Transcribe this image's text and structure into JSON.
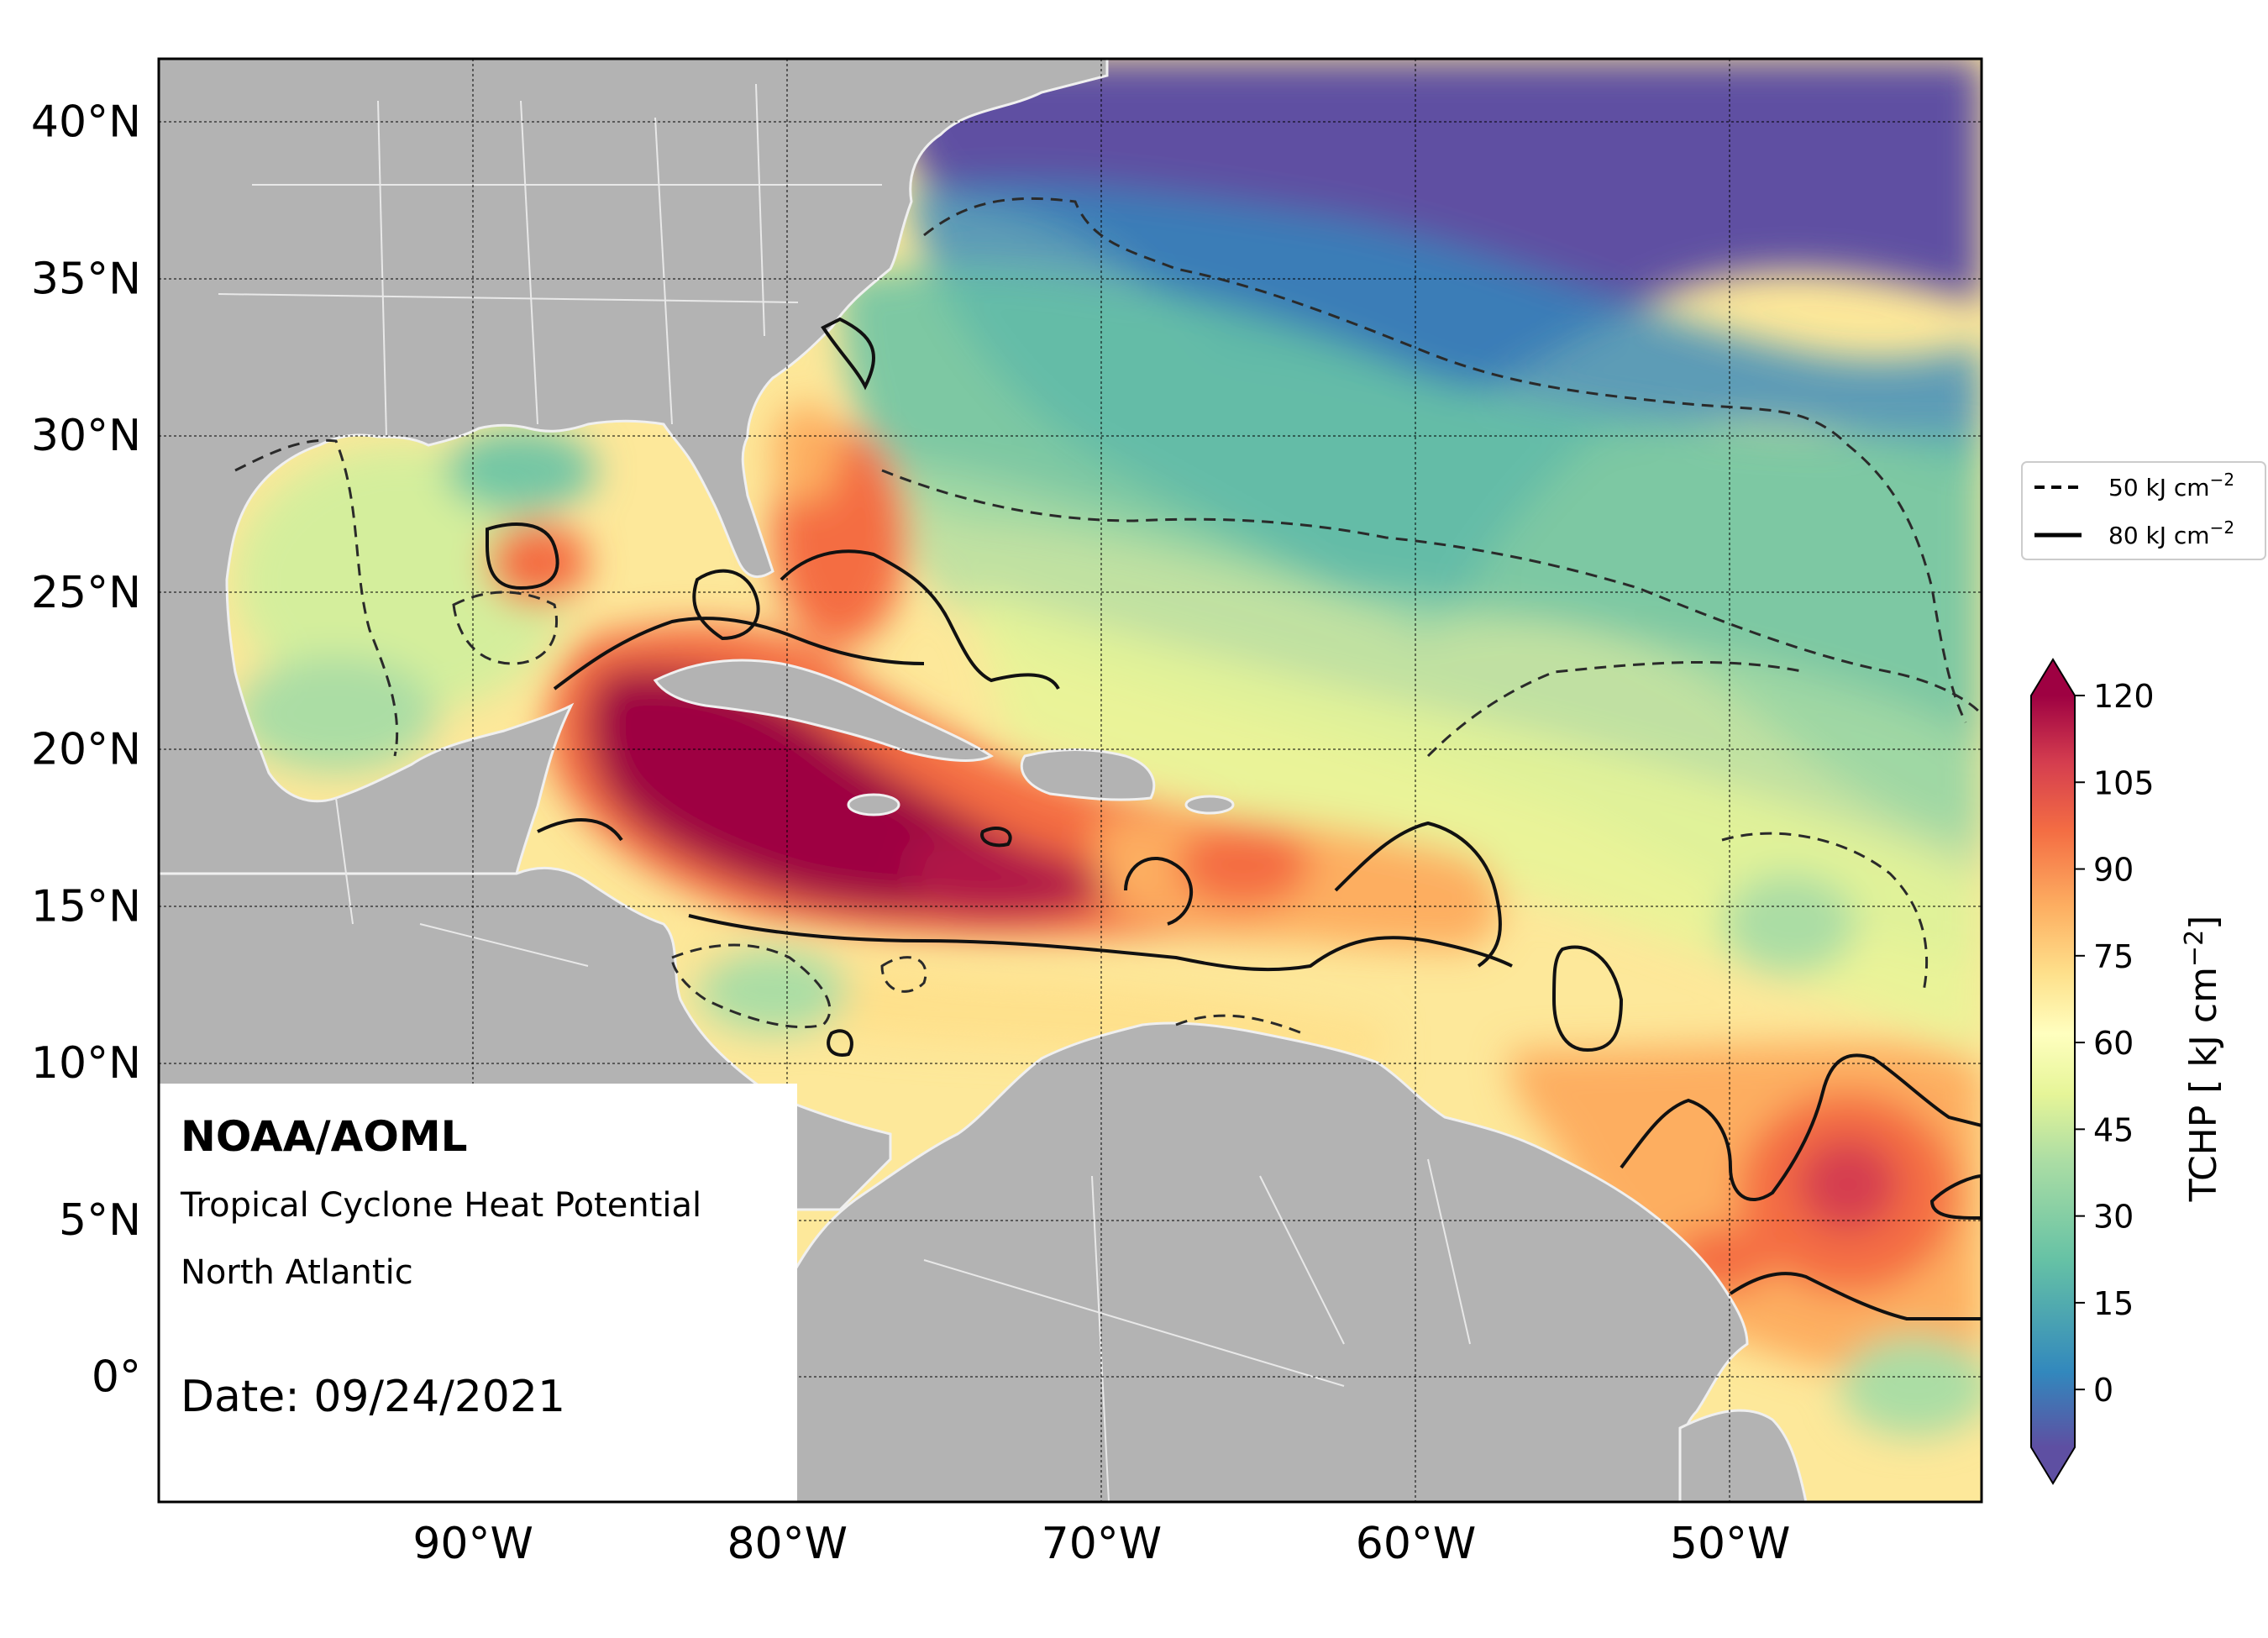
{
  "header": {
    "agency": "NOAA/AOML",
    "product": "Tropical Cyclone Heat Potential",
    "region": "North Atlantic",
    "date_label": "Date: 09/24/2021"
  },
  "map": {
    "lon_range": [
      -100,
      -42
    ],
    "lat_range": [
      -4,
      42
    ],
    "x_ticks": [
      {
        "value": -90,
        "label": "90°W"
      },
      {
        "value": -80,
        "label": "80°W"
      },
      {
        "value": -70,
        "label": "70°W"
      },
      {
        "value": -60,
        "label": "60°W"
      },
      {
        "value": -50,
        "label": "50°W"
      }
    ],
    "y_ticks": [
      {
        "value": 40,
        "label": "40°N"
      },
      {
        "value": 35,
        "label": "35°N"
      },
      {
        "value": 30,
        "label": "30°N"
      },
      {
        "value": 25,
        "label": "25°N"
      },
      {
        "value": 20,
        "label": "20°N"
      },
      {
        "value": 15,
        "label": "15°N"
      },
      {
        "value": 10,
        "label": "10°N"
      },
      {
        "value": 5,
        "label": "5°N"
      },
      {
        "value": 0,
        "label": "0°"
      }
    ],
    "land_color": "#b3b3b3",
    "grid": true
  },
  "contour_legend": {
    "dashed_label": "50 kJ cm",
    "solid_label": "80 kJ cm",
    "superscript": "−2"
  },
  "colorbar": {
    "label": "TCHP [ kJ cm",
    "label_superscript": "−2",
    "label_suffix": "]",
    "min": -10,
    "max": 120,
    "ticks": [
      {
        "value": 120,
        "label": "120"
      },
      {
        "value": 105,
        "label": "105"
      },
      {
        "value": 90,
        "label": "90"
      },
      {
        "value": 75,
        "label": "75"
      },
      {
        "value": 60,
        "label": "60"
      },
      {
        "value": 45,
        "label": "45"
      },
      {
        "value": 30,
        "label": "30"
      },
      {
        "value": 15,
        "label": "15"
      },
      {
        "value": 0,
        "label": "0"
      }
    ],
    "colors": [
      "#5e4fa2",
      "#3288bd",
      "#66c2a5",
      "#abdda4",
      "#e6f598",
      "#ffffbf",
      "#fee08b",
      "#fdae61",
      "#f46d43",
      "#d53e4f",
      "#9e0142"
    ]
  }
}
